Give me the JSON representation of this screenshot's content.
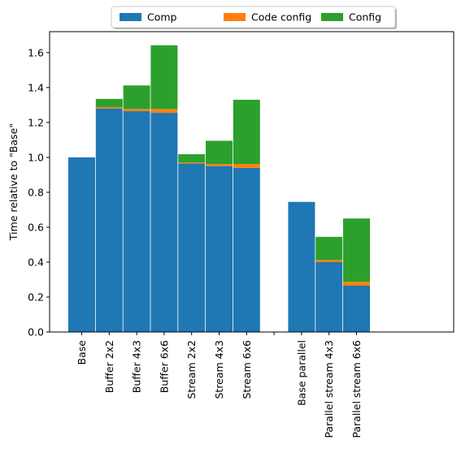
{
  "chart_data": {
    "type": "bar",
    "stacked": true,
    "categories": [
      "Base",
      "Buffer 2x2",
      "Buffer 4x3",
      "Buffer 6x6",
      "Stream 2x2",
      "Stream 4x3",
      "Stream 6x6",
      "",
      "Base parallel",
      "Parallel stream 4x3",
      "Parallel stream 6x6"
    ],
    "series": [
      {
        "name": "Comp",
        "color": "#1f77b4",
        "values": [
          1.0,
          1.28,
          1.265,
          1.255,
          0.965,
          0.95,
          0.94,
          null,
          0.745,
          0.4,
          0.265
        ]
      },
      {
        "name": "Code config",
        "color": "#ff7f0e",
        "values": [
          0.0,
          0.008,
          0.012,
          0.022,
          0.006,
          0.012,
          0.022,
          null,
          0.0,
          0.012,
          0.022
        ]
      },
      {
        "name": "Config",
        "color": "#2ca02c",
        "values": [
          0.0,
          0.047,
          0.135,
          0.365,
          0.047,
          0.133,
          0.368,
          null,
          0.0,
          0.133,
          0.363
        ]
      }
    ],
    "ylabel": "Time relative to \"Base\"",
    "xlabel": "",
    "ylim": [
      0,
      1.72
    ],
    "yticks": [
      0.0,
      0.2,
      0.4,
      0.6,
      0.8,
      1.0,
      1.2,
      1.4,
      1.6
    ],
    "ytick_labels": [
      "0.0",
      "0.2",
      "0.4",
      "0.6",
      "0.8",
      "1.0",
      "1.2",
      "1.4",
      "1.6"
    ],
    "legend_position": "top-center",
    "grid": false
  }
}
